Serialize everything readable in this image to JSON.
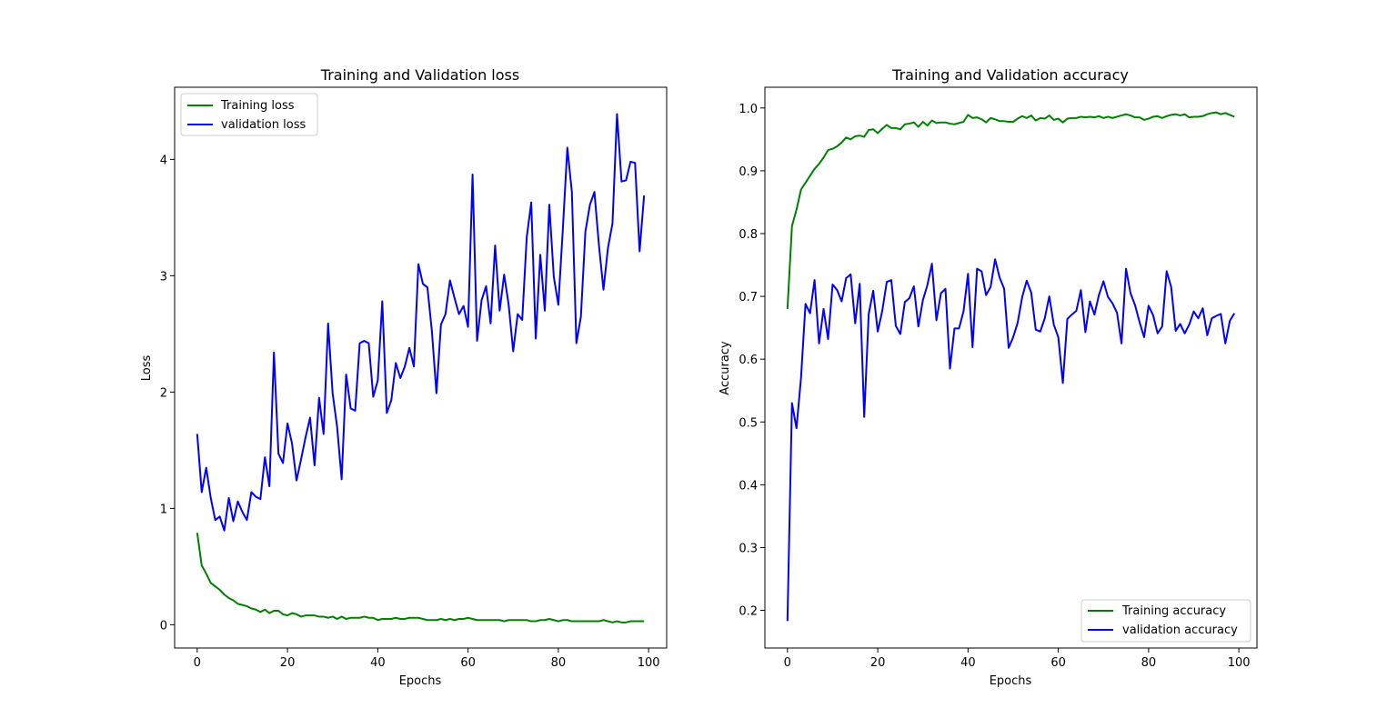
{
  "chart_data": [
    {
      "type": "line",
      "title": "Training and Validation loss",
      "xlabel": "Epochs",
      "ylabel": "Loss",
      "xlim": [
        -5,
        104
      ],
      "ylim": [
        -0.2,
        4.62
      ],
      "x_ticks": [
        0,
        20,
        40,
        60,
        80,
        100
      ],
      "y_ticks": [
        0,
        1,
        2,
        3,
        4
      ],
      "x_tick_labels": [
        "0",
        "20",
        "40",
        "60",
        "80",
        "100"
      ],
      "y_tick_labels": [
        "0",
        "1",
        "2",
        "3",
        "4"
      ],
      "grid": false,
      "legend": "top-left",
      "series": [
        {
          "name": "Training loss",
          "color": "#008000",
          "values": [
            0.79,
            0.51,
            0.44,
            0.36,
            0.33,
            0.3,
            0.26,
            0.23,
            0.21,
            0.18,
            0.17,
            0.16,
            0.14,
            0.13,
            0.11,
            0.13,
            0.1,
            0.12,
            0.12,
            0.09,
            0.08,
            0.1,
            0.09,
            0.07,
            0.08,
            0.08,
            0.08,
            0.07,
            0.07,
            0.06,
            0.07,
            0.05,
            0.07,
            0.05,
            0.06,
            0.06,
            0.06,
            0.07,
            0.06,
            0.06,
            0.04,
            0.05,
            0.05,
            0.05,
            0.06,
            0.05,
            0.05,
            0.06,
            0.06,
            0.06,
            0.05,
            0.04,
            0.04,
            0.04,
            0.05,
            0.04,
            0.05,
            0.04,
            0.05,
            0.05,
            0.06,
            0.05,
            0.04,
            0.04,
            0.04,
            0.04,
            0.04,
            0.04,
            0.03,
            0.04,
            0.04,
            0.04,
            0.04,
            0.04,
            0.03,
            0.03,
            0.04,
            0.04,
            0.05,
            0.04,
            0.03,
            0.04,
            0.04,
            0.03,
            0.03,
            0.03,
            0.03,
            0.03,
            0.03,
            0.03,
            0.04,
            0.03,
            0.02,
            0.03,
            0.02,
            0.02,
            0.03,
            0.03,
            0.03,
            0.03
          ]
        },
        {
          "name": "validation loss",
          "color": "#0000ff",
          "values": [
            1.64,
            1.14,
            1.35,
            1.09,
            0.9,
            0.93,
            0.81,
            1.09,
            0.89,
            1.06,
            0.97,
            0.9,
            1.14,
            1.1,
            1.08,
            1.44,
            1.19,
            2.34,
            1.47,
            1.39,
            1.73,
            1.56,
            1.24,
            1.42,
            1.61,
            1.78,
            1.37,
            1.95,
            1.64,
            2.59,
            1.99,
            1.7,
            1.25,
            2.15,
            1.86,
            1.84,
            2.42,
            2.44,
            2.42,
            1.96,
            2.1,
            2.78,
            1.82,
            1.93,
            2.25,
            2.12,
            2.22,
            2.38,
            2.22,
            3.1,
            2.93,
            2.9,
            2.52,
            1.99,
            2.58,
            2.67,
            2.96,
            2.81,
            2.67,
            2.74,
            2.56,
            3.87,
            2.44,
            2.79,
            2.91,
            2.59,
            3.26,
            2.7,
            3.01,
            2.75,
            2.35,
            2.67,
            2.62,
            3.33,
            3.63,
            2.46,
            3.18,
            2.7,
            3.61,
            2.99,
            2.75,
            3.4,
            4.1,
            3.72,
            2.42,
            2.65,
            3.38,
            3.61,
            3.72,
            3.26,
            2.88,
            3.24,
            3.45,
            4.39,
            3.81,
            3.82,
            3.98,
            3.97,
            3.21,
            3.69
          ]
        }
      ]
    },
    {
      "type": "line",
      "title": "Training and Validation accuracy",
      "xlabel": "Epochs",
      "ylabel": "Accuracy",
      "xlim": [
        -5,
        104
      ],
      "ylim": [
        0.14,
        1.033
      ],
      "x_ticks": [
        0,
        20,
        40,
        60,
        80,
        100
      ],
      "y_ticks": [
        0.2,
        0.3,
        0.4,
        0.5,
        0.6,
        0.7,
        0.8,
        0.9,
        1.0
      ],
      "x_tick_labels": [
        "0",
        "20",
        "40",
        "60",
        "80",
        "100"
      ],
      "y_tick_labels": [
        "0.2",
        "0.3",
        "0.4",
        "0.5",
        "0.6",
        "0.7",
        "0.8",
        "0.9",
        "1.0"
      ],
      "grid": false,
      "legend": "bottom-right",
      "series": [
        {
          "name": "Training accuracy",
          "color": "#008000",
          "values": [
            0.68,
            0.812,
            0.838,
            0.87,
            0.881,
            0.892,
            0.903,
            0.911,
            0.921,
            0.933,
            0.935,
            0.939,
            0.945,
            0.953,
            0.95,
            0.955,
            0.956,
            0.954,
            0.965,
            0.966,
            0.96,
            0.967,
            0.973,
            0.968,
            0.968,
            0.966,
            0.974,
            0.975,
            0.977,
            0.97,
            0.978,
            0.972,
            0.98,
            0.976,
            0.977,
            0.977,
            0.975,
            0.974,
            0.976,
            0.978,
            0.989,
            0.984,
            0.985,
            0.982,
            0.977,
            0.984,
            0.982,
            0.979,
            0.979,
            0.978,
            0.978,
            0.983,
            0.987,
            0.984,
            0.988,
            0.98,
            0.984,
            0.983,
            0.988,
            0.981,
            0.983,
            0.977,
            0.983,
            0.984,
            0.984,
            0.986,
            0.985,
            0.986,
            0.985,
            0.987,
            0.984,
            0.986,
            0.984,
            0.986,
            0.988,
            0.99,
            0.988,
            0.985,
            0.985,
            0.981,
            0.983,
            0.986,
            0.987,
            0.984,
            0.987,
            0.989,
            0.99,
            0.988,
            0.99,
            0.985,
            0.986,
            0.986,
            0.987,
            0.99,
            0.992,
            0.993,
            0.99,
            0.992,
            0.989,
            0.986
          ]
        },
        {
          "name": "validation accuracy",
          "color": "#0000ff",
          "values": [
            0.183,
            0.53,
            0.49,
            0.57,
            0.688,
            0.673,
            0.726,
            0.625,
            0.68,
            0.632,
            0.719,
            0.71,
            0.692,
            0.729,
            0.735,
            0.657,
            0.72,
            0.508,
            0.672,
            0.709,
            0.644,
            0.677,
            0.723,
            0.726,
            0.653,
            0.64,
            0.691,
            0.697,
            0.716,
            0.652,
            0.694,
            0.718,
            0.752,
            0.662,
            0.705,
            0.712,
            0.585,
            0.649,
            0.649,
            0.676,
            0.736,
            0.619,
            0.744,
            0.74,
            0.702,
            0.715,
            0.759,
            0.73,
            0.712,
            0.618,
            0.635,
            0.658,
            0.699,
            0.725,
            0.706,
            0.647,
            0.644,
            0.665,
            0.7,
            0.655,
            0.635,
            0.562,
            0.664,
            0.671,
            0.677,
            0.71,
            0.643,
            0.692,
            0.671,
            0.702,
            0.724,
            0.699,
            0.689,
            0.674,
            0.625,
            0.744,
            0.705,
            0.686,
            0.659,
            0.635,
            0.685,
            0.67,
            0.641,
            0.652,
            0.74,
            0.715,
            0.645,
            0.656,
            0.641,
            0.655,
            0.676,
            0.665,
            0.681,
            0.638,
            0.665,
            0.669,
            0.672,
            0.625,
            0.661,
            0.673
          ]
        }
      ]
    }
  ]
}
